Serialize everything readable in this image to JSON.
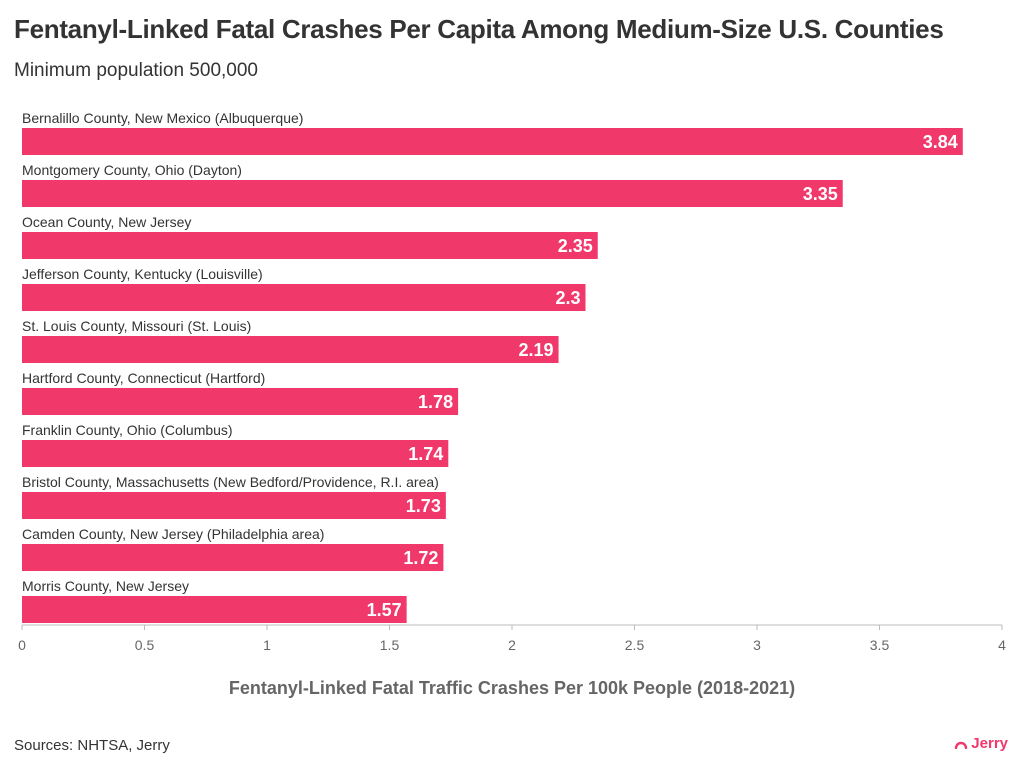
{
  "chart_data": {
    "type": "bar",
    "orientation": "horizontal",
    "title": "Fentanyl-Linked Fatal Crashes Per Capita Among Medium-Size U.S. Counties",
    "subtitle": "Minimum population 500,000",
    "categories": [
      "Bernalillo County, New Mexico (Albuquerque)",
      "Montgomery County, Ohio (Dayton)",
      "Ocean County, New Jersey",
      "Jefferson County, Kentucky (Louisville)",
      "St. Louis County, Missouri (St. Louis)",
      "Hartford County, Connecticut (Hartford)",
      "Franklin County, Ohio (Columbus)",
      "Bristol County, Massachusetts (New Bedford/Providence, R.I. area)",
      "Camden County, New Jersey (Philadelphia area)",
      "Morris County, New Jersey"
    ],
    "values": [
      3.84,
      3.35,
      2.35,
      2.3,
      2.19,
      1.78,
      1.74,
      1.73,
      1.72,
      1.57
    ],
    "value_labels": [
      "3.84",
      "3.35",
      "2.35",
      "2.3",
      "2.19",
      "1.78",
      "1.74",
      "1.73",
      "1.72",
      "1.57"
    ],
    "xlabel": "Fentanyl-Linked Fatal Traffic Crashes Per 100k People (2018-2021)",
    "xlim": [
      0,
      4
    ],
    "xticks": [
      0,
      0.5,
      1,
      1.5,
      2,
      2.5,
      3,
      3.5,
      4
    ],
    "xtick_labels": [
      "0",
      "0.5",
      "1",
      "1.5",
      "2",
      "2.5",
      "3",
      "3.5",
      "4"
    ],
    "bar_color": "#f0386b",
    "grid": false
  },
  "footer": {
    "source": "Sources: NHTSA, Jerry",
    "brand": "Jerry"
  }
}
